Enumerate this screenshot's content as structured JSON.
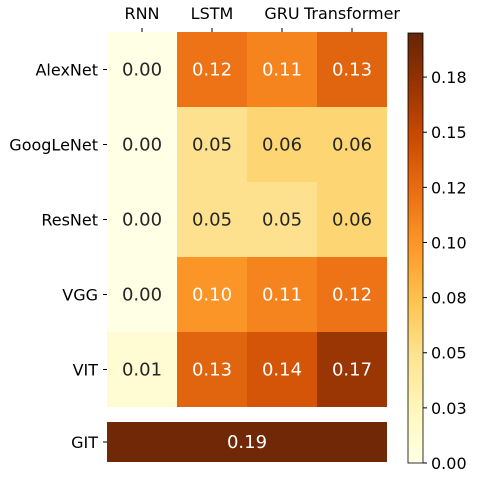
{
  "chart_data": {
    "type": "heatmap",
    "columns": [
      "RNN",
      "LSTM",
      "GRU",
      "Transformer"
    ],
    "rows": [
      "AlexNet",
      "GoogLeNet",
      "ResNet",
      "VGG",
      "VIT"
    ],
    "values": [
      [
        0.0,
        0.12,
        0.11,
        0.13
      ],
      [
        0.0,
        0.05,
        0.06,
        0.06
      ],
      [
        0.0,
        0.05,
        0.05,
        0.06
      ],
      [
        0.0,
        0.1,
        0.11,
        0.12
      ],
      [
        0.01,
        0.13,
        0.14,
        0.17
      ]
    ],
    "value_labels": [
      [
        "0.00",
        "0.12",
        "0.11",
        "0.13"
      ],
      [
        "0.00",
        "0.05",
        "0.06",
        "0.06"
      ],
      [
        "0.00",
        "0.05",
        "0.05",
        "0.06"
      ],
      [
        "0.00",
        "0.10",
        "0.11",
        "0.12"
      ],
      [
        "0.01",
        "0.13",
        "0.14",
        "0.17"
      ]
    ],
    "extra_row": {
      "label": "GIT",
      "value": 0.19,
      "value_label": "0.19"
    },
    "colorbar": {
      "colormap": "YlOrBr",
      "range": [
        0,
        0.195
      ],
      "ticks": [
        0.0,
        0.025,
        0.05,
        0.075,
        0.1,
        0.125,
        0.15,
        0.175
      ],
      "tick_labels": [
        "0.00",
        "0.03",
        "0.05",
        "0.08",
        "0.10",
        "0.12",
        "0.15",
        "0.18"
      ]
    },
    "x_axis_position": "top",
    "grid": false
  }
}
